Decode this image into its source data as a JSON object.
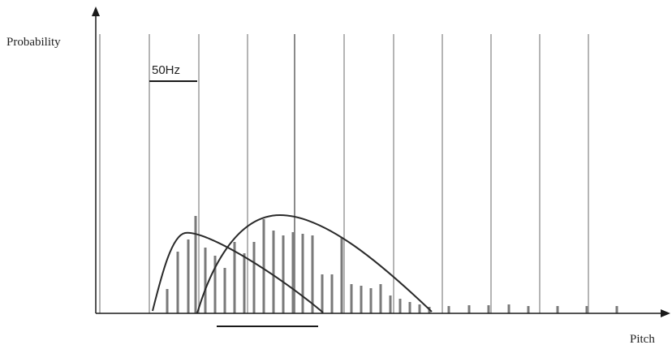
{
  "labels": {
    "y_axis": "Probability",
    "x_axis": "Pitch",
    "scale": "50Hz"
  },
  "colors": {
    "axis": "#1a1a1a",
    "grid_line": "#b5b5b5",
    "grid_line_dark": "#8a8a8a",
    "bar": "#7a7a7a",
    "curve": "#2a2a2a"
  }
}
